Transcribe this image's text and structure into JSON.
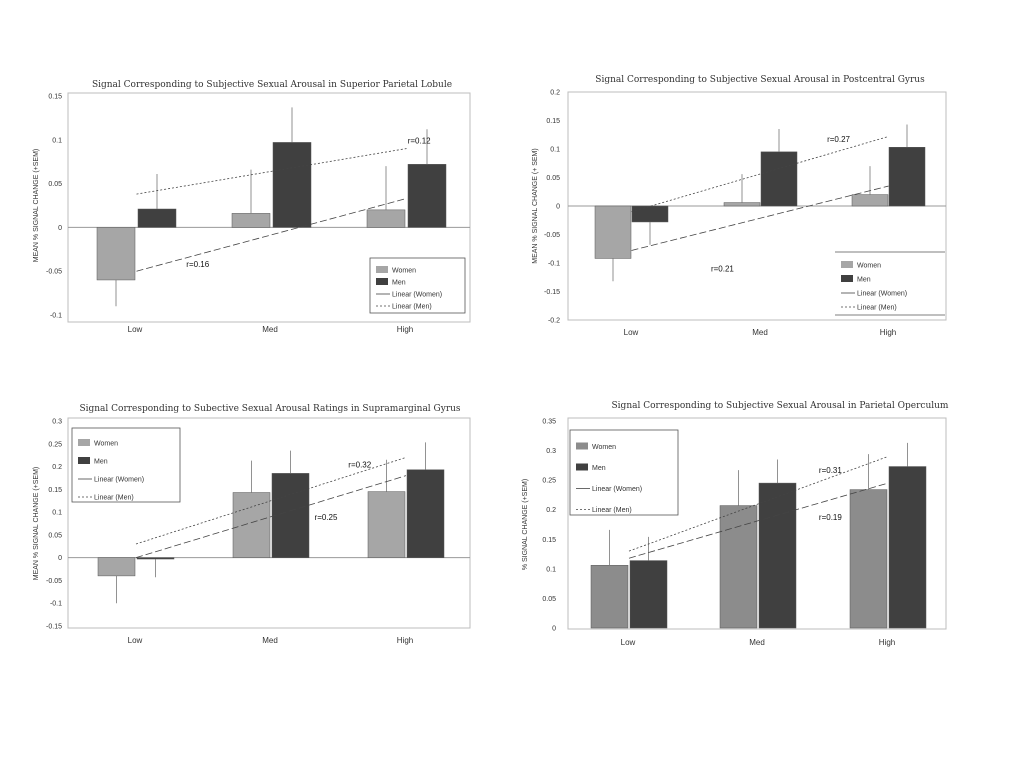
{
  "chart_data": [
    {
      "type": "bar",
      "title": "Signal Corresponding to Subjective Sexual Arousal in Superior Parietal Lobule",
      "ylabel": "MEAN % SIGNAL CHANGE (+SEM)",
      "categories": [
        "Low",
        "Med",
        "High"
      ],
      "ylim": [
        -0.1,
        0.15
      ],
      "yticks": [
        -0.1,
        -0.05,
        0,
        0.05,
        0.1,
        0.15
      ],
      "ytick_labels": [
        "-0.1",
        "-0.05",
        "0",
        "0.05",
        "0.1",
        "0.15"
      ],
      "series": [
        {
          "name": "Women",
          "color": "#a6a6a6",
          "values": [
            -0.06,
            0.016,
            0.02
          ],
          "errors": [
            0.03,
            0.05,
            0.05
          ]
        },
        {
          "name": "Men",
          "color": "#404040",
          "values": [
            0.021,
            0.097,
            0.072
          ],
          "errors": [
            0.04,
            0.04,
            0.04
          ]
        }
      ],
      "trendlines": [
        {
          "name": "Linear  (Women)",
          "style": "long-dash",
          "from": -0.05,
          "to": 0.033,
          "label": "r=0.16",
          "label_at": [
            0.38,
            -0.045
          ]
        },
        {
          "name": "Linear  (Men)",
          "style": "dotted",
          "from": 0.038,
          "to": 0.09,
          "label": "r=0.12",
          "label_at": [
            2.02,
            0.096
          ]
        }
      ],
      "grid": false,
      "legend": "bottom-right"
    },
    {
      "type": "bar",
      "title": "Signal Corresponding to Subjective Sexual Arousal in Postcentral Gyrus",
      "ylabel": "MEAN % SIGNAL CHANGE (+ SEM)",
      "categories": [
        "Low",
        "Med",
        "High"
      ],
      "ylim": [
        -0.2,
        0.2
      ],
      "yticks": [
        -0.2,
        -0.15,
        -0.1,
        -0.05,
        0,
        0.05,
        0.1,
        0.15,
        0.2
      ],
      "ytick_labels": [
        "-0.2",
        "-0.15",
        "-0.1",
        "-0.05",
        "0",
        "0.05",
        "0.1",
        "0.15",
        "0.2"
      ],
      "series": [
        {
          "name": "Women",
          "color": "#a6a6a6",
          "values": [
            -0.092,
            0.006,
            0.02
          ],
          "errors": [
            0.04,
            0.05,
            0.05
          ]
        },
        {
          "name": "Men",
          "color": "#404040",
          "values": [
            -0.028,
            0.095,
            0.103
          ],
          "errors": [
            0.04,
            0.04,
            0.04
          ]
        }
      ],
      "trendlines": [
        {
          "name": "Linear  (Women)",
          "style": "long-dash",
          "from": -0.078,
          "to": 0.035,
          "label": "r=0.21",
          "label_at": [
            0.62,
            -0.115
          ]
        },
        {
          "name": "Linear  (Men)",
          "style": "dotted",
          "from": -0.01,
          "to": 0.122,
          "label": "r=0.27",
          "label_at": [
            1.52,
            0.112
          ]
        }
      ],
      "grid": false,
      "legend": "bottom-right"
    },
    {
      "type": "bar",
      "title": "Signal Corresponding to Subective Sexual Arousal Ratings in Supramarginal Gyrus",
      "ylabel": "MEAN % SIGNAL CHANGE (+SEM)",
      "categories": [
        "Low",
        "Med",
        "High"
      ],
      "ylim": [
        -0.15,
        0.3
      ],
      "yticks": [
        -0.15,
        -0.1,
        -0.05,
        0,
        0.05,
        0.1,
        0.15,
        0.2,
        0.25,
        0.3
      ],
      "ytick_labels": [
        "-0.15",
        "-0.1",
        "-0.05",
        "0",
        "0.05",
        "0.1",
        "0.15",
        "0.2",
        "0.25",
        "0.3"
      ],
      "series": [
        {
          "name": "Women",
          "color": "#a6a6a6",
          "values": [
            -0.04,
            0.143,
            0.145
          ],
          "errors": [
            0.06,
            0.07,
            0.07
          ]
        },
        {
          "name": "Men",
          "color": "#404040",
          "values": [
            -0.003,
            0.185,
            0.193
          ],
          "errors": [
            0.04,
            0.05,
            0.06
          ]
        }
      ],
      "trendlines": [
        {
          "name": "Linear  (Women)",
          "style": "long-dash",
          "from": 0.0,
          "to": 0.18,
          "label": "r=0.25",
          "label_at": [
            1.33,
            0.083
          ]
        },
        {
          "name": "Linear  (Men)",
          "style": "dotted",
          "from": 0.03,
          "to": 0.22,
          "label": "r=0.32",
          "label_at": [
            1.58,
            0.198
          ]
        }
      ],
      "grid": false,
      "legend": "top-left"
    },
    {
      "type": "bar",
      "title": "Signal Corresponding to Subjective Sexual Arousal in Parietal Operculum",
      "ylabel": "% SIGNAL CHANGE (+SEM)",
      "categories": [
        "Low",
        "Med",
        "High"
      ],
      "ylim": [
        0,
        0.35
      ],
      "yticks": [
        0,
        0.05,
        0.1,
        0.15,
        0.2,
        0.25,
        0.3,
        0.35
      ],
      "ytick_labels": [
        "0",
        "0.05",
        "0.1",
        "0.15",
        "0.2",
        "0.25",
        "0.3",
        "0.35"
      ],
      "series": [
        {
          "name": "Women",
          "color": "#8c8c8c",
          "values": [
            0.106,
            0.207,
            0.234
          ],
          "errors": [
            0.06,
            0.06,
            0.06
          ]
        },
        {
          "name": "Men",
          "color": "#404040",
          "values": [
            0.114,
            0.245,
            0.273
          ],
          "errors": [
            0.04,
            0.04,
            0.04
          ]
        }
      ],
      "trendlines": [
        {
          "name": "Linear  (Women)",
          "style": "long-dash",
          "from": 0.118,
          "to": 0.245,
          "label": "r=0.19",
          "label_at": [
            1.48,
            0.183
          ]
        },
        {
          "name": "Linear  (Men)",
          "style": "dotted",
          "from": 0.13,
          "to": 0.29,
          "label": "r=0.31",
          "label_at": [
            1.48,
            0.262
          ]
        }
      ],
      "grid": false,
      "legend": "top-left"
    }
  ]
}
